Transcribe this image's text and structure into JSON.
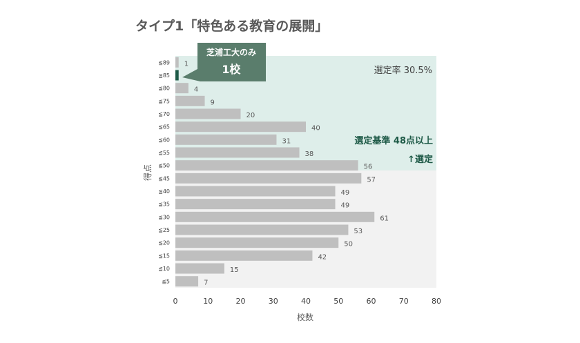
{
  "chart_data": {
    "type": "bar",
    "orientation": "horizontal",
    "title": "タイプ1「特色ある教育の展開」",
    "xlabel": "校数",
    "ylabel": "得点",
    "xlim": [
      0,
      80
    ],
    "xticks": [
      "0",
      "10",
      "20",
      "30",
      "40",
      "50",
      "60",
      "70",
      "80"
    ],
    "categories": [
      "≦89",
      "≦85",
      "≦80",
      "≦75",
      "≦70",
      "≦65",
      "≦60",
      "≦55",
      "≦50",
      "≦45",
      "≦40",
      "≦35",
      "≦30",
      "≦25",
      "≦20",
      "≦15",
      "≦10",
      "≦5"
    ],
    "values": [
      1,
      1,
      4,
      9,
      20,
      40,
      31,
      38,
      56,
      57,
      49,
      49,
      61,
      53,
      50,
      42,
      15,
      7
    ],
    "data_labels": [
      "1",
      "",
      "4",
      "9",
      "20",
      "40",
      "31",
      "38",
      "56",
      "57",
      "49",
      "49",
      "61",
      "53",
      "50",
      "42",
      "15",
      "7"
    ],
    "highlight_index": 1,
    "selected_through_index": 8,
    "annotations": {
      "callout_line1": "芝浦工大のみ",
      "callout_line2": "1校",
      "selection_rate": "選定率 30.5%",
      "criteria_line1": "選定基準 48点以上",
      "criteria_line2": "↑選定"
    },
    "colors": {
      "bar": "#bfbfbf",
      "highlight_bar": "#1e5a47",
      "selected_region": "#deeeea",
      "unselected_region": "#f2f2f2",
      "callout": "#5a7d6c",
      "criteria_text": "#1e5a47"
    }
  }
}
